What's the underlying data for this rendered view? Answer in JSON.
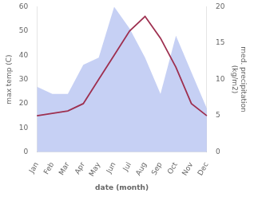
{
  "chart_data": {
    "type": "line",
    "categories": [
      "Jan",
      "Feb",
      "Mar",
      "Apr",
      "May",
      "Jun",
      "Jul",
      "Aug",
      "Sep",
      "Oct",
      "Nov",
      "Dec"
    ],
    "xlabel": "date (month)",
    "ylabel": "max temp (C)",
    "y2label": "med. precipitation\n(kg/m2)",
    "series": [
      {
        "type": "line",
        "color": "#9e3050",
        "values": [
          15,
          16,
          17,
          20,
          30,
          40,
          50,
          56,
          47,
          35,
          20,
          15
        ]
      },
      {
        "type": "area",
        "color": "#b3c0f0",
        "axis": "y2",
        "values": [
          9,
          8,
          8,
          12,
          13,
          20,
          17,
          13,
          8,
          16,
          11,
          6
        ]
      }
    ],
    "ylim": [
      0,
      60
    ],
    "yticks": [
      0,
      10,
      20,
      30,
      40,
      50,
      60
    ],
    "y2lim": [
      0,
      20
    ],
    "y2ticks": [
      0,
      5,
      10,
      15,
      20
    ],
    "grid": false
  }
}
